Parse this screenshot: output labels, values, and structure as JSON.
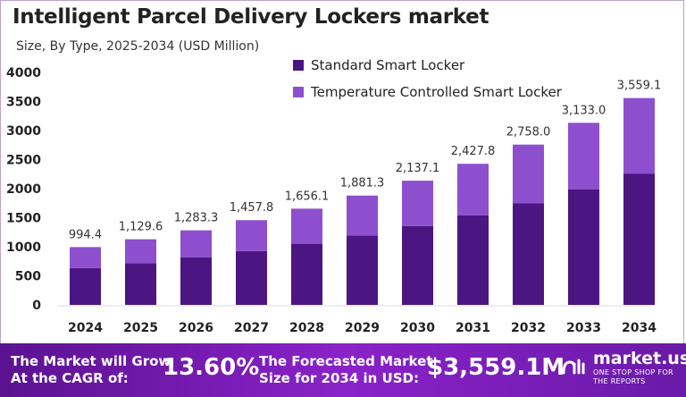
{
  "chart_data": {
    "type": "bar",
    "stacked": true,
    "title": "Intelligent Parcel Delivery Lockers market",
    "subtitle": "Size, By Type, 2025-2034 (USD Million)",
    "categories": [
      "2024",
      "2025",
      "2026",
      "2027",
      "2028",
      "2029",
      "2030",
      "2031",
      "2032",
      "2033",
      "2034"
    ],
    "series": [
      {
        "name": "Standard Smart Locker",
        "color": "#4b1682",
        "values": [
          632,
          717,
          815,
          926,
          1052,
          1195,
          1357,
          1542,
          1751,
          1990,
          2260
        ]
      },
      {
        "name": "Temperature Controlled Smart Locker",
        "color": "#8e4fcf",
        "values": [
          362.4,
          412.6,
          468.3,
          531.8,
          604.1,
          686.3,
          780.1,
          885.8,
          1007.0,
          1143.0,
          1299.1
        ]
      }
    ],
    "totals_labels": [
      "994.4",
      "1,129.6",
      "1,283.3",
      "1,457.8",
      "1,656.1",
      "1,881.3",
      "2,137.1",
      "2,427.8",
      "2,758.0",
      "3,133.0",
      "3,559.1"
    ],
    "yticks": [
      "0",
      "500",
      "1000",
      "1500",
      "2000",
      "2500",
      "3000",
      "3500",
      "4000"
    ],
    "ylim": [
      0,
      4000
    ],
    "grid": false,
    "legend": "top-right"
  },
  "banner": {
    "cagr_text_1": "The Market will Grow",
    "cagr_text_2": "At the CAGR of:",
    "cagr_value": "13.60%",
    "forecast_text_1": "The Forecasted Market",
    "forecast_text_2": "Size for 2034 in USD:",
    "forecast_value": "$3,559.1M",
    "logo_name": "market.us",
    "logo_tagline": "ONE STOP SHOP FOR THE REPORTS"
  }
}
